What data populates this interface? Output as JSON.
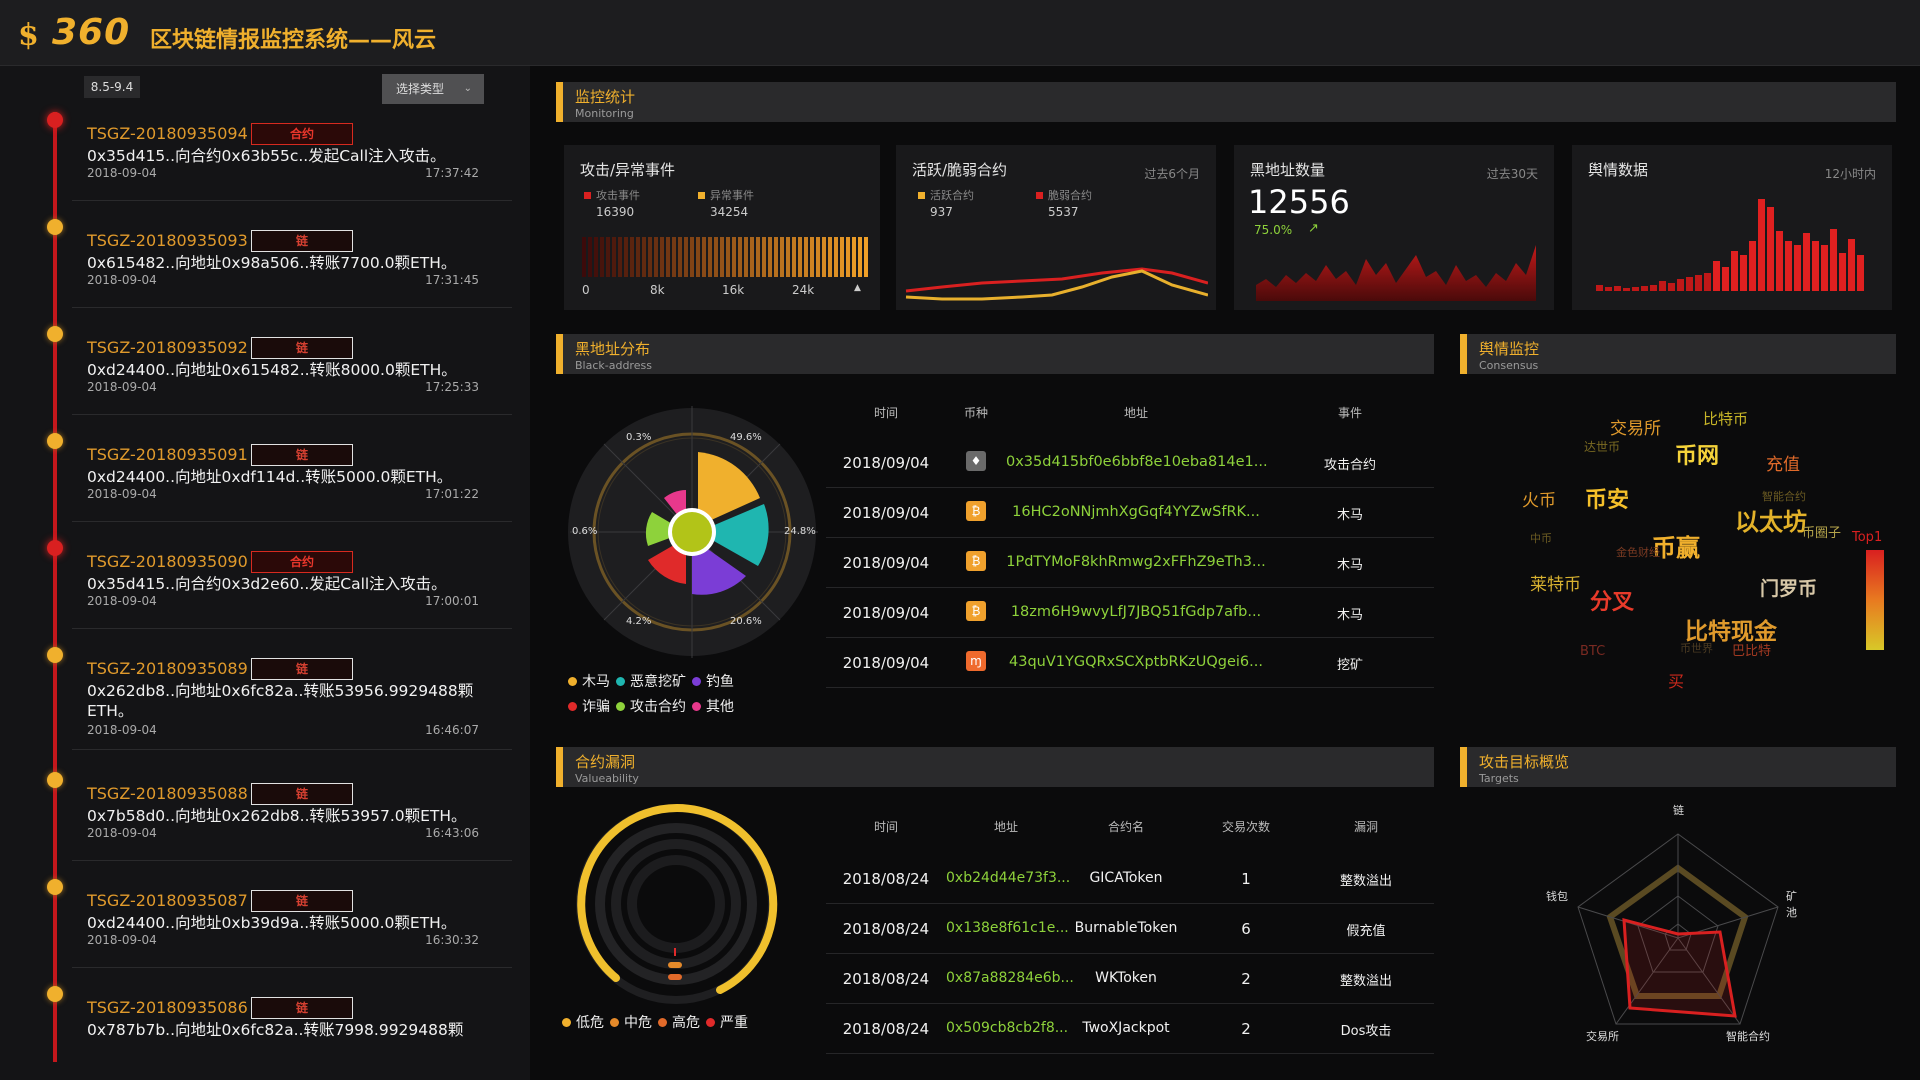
{
  "header": {
    "logo_icon": "$",
    "brand": "360",
    "title": "区块链情报监控系统——风云"
  },
  "left": {
    "date_range": "8.5-9.4",
    "type_select": {
      "label": "选择类型",
      "icon": "chevron-down-icon"
    },
    "events": [
      {
        "id": "TSGZ-20180935094",
        "tag": "合约",
        "tag_kind": "contract",
        "desc": "0x35d415..向合约0x63b55c..发起Call注入攻击。",
        "date": "2018-09-04",
        "time": "17:37:42",
        "dot": "red"
      },
      {
        "id": "TSGZ-20180935093",
        "tag": "链",
        "tag_kind": "chain",
        "desc": "0x615482..向地址0x98a506..转账7700.0颗ETH。",
        "date": "2018-09-04",
        "time": "17:31:45",
        "dot": "yellow"
      },
      {
        "id": "TSGZ-20180935092",
        "tag": "链",
        "tag_kind": "chain",
        "desc": "0xd24400..向地址0x615482..转账8000.0颗ETH。",
        "date": "2018-09-04",
        "time": "17:25:33",
        "dot": "yellow"
      },
      {
        "id": "TSGZ-20180935091",
        "tag": "链",
        "tag_kind": "chain",
        "desc": "0xd24400..向地址0xdf114d..转账5000.0颗ETH。",
        "date": "2018-09-04",
        "time": "17:01:22",
        "dot": "yellow"
      },
      {
        "id": "TSGZ-20180935090",
        "tag": "合约",
        "tag_kind": "contract",
        "desc": "0x35d415..向合约0x3d2e60..发起Call注入攻击。",
        "date": "2018-09-04",
        "time": "17:00:01",
        "dot": "red"
      },
      {
        "id": "TSGZ-20180935089",
        "tag": "链",
        "tag_kind": "chain",
        "desc": "0x262db8..向地址0x6fc82a..转账53956.9929488颗ETH。",
        "date": "2018-09-04",
        "time": "16:46:07",
        "dot": "yellow"
      },
      {
        "id": "TSGZ-20180935088",
        "tag": "链",
        "tag_kind": "chain",
        "desc": "0x7b58d0..向地址0x262db8..转账53957.0颗ETH。",
        "date": "2018-09-04",
        "time": "16:43:06",
        "dot": "yellow"
      },
      {
        "id": "TSGZ-20180935087",
        "tag": "链",
        "tag_kind": "chain",
        "desc": "0xd24400..向地址0xb39d9a..转账5000.0颗ETH。",
        "date": "2018-09-04",
        "time": "16:30:32",
        "dot": "yellow"
      },
      {
        "id": "TSGZ-20180935086",
        "tag": "链",
        "tag_kind": "chain",
        "desc": "0x787b7b..向地址0x6fc82a..转账7998.9929488颗",
        "date": "",
        "time": "",
        "dot": "yellow"
      }
    ]
  },
  "monitoring": {
    "title": "监控统计",
    "subtitle": "Monitoring",
    "attack": {
      "title": "攻击/异常事件",
      "legend": [
        {
          "label": "攻击事件",
          "value": "16390",
          "color": "#d92020"
        },
        {
          "label": "异常事件",
          "value": "34254",
          "color": "#f0b02d"
        }
      ],
      "axis": [
        "0",
        "8k",
        "16k",
        "24k"
      ]
    },
    "contracts": {
      "title": "活跃/脆弱合约",
      "range": "过去6个月",
      "legend": [
        {
          "label": "活跃合约",
          "value": "937",
          "color": "#f0b02d"
        },
        {
          "label": "脆弱合约",
          "value": "5537",
          "color": "#d92020"
        }
      ]
    },
    "blacklist": {
      "title": "黑地址数量",
      "range": "过去30天",
      "value": "12556",
      "pct": "75.0%",
      "trend_icon": "trend-up-icon"
    },
    "sentiment": {
      "title": "舆情数据",
      "range": "12小时内"
    }
  },
  "black": {
    "title": "黑地址分布",
    "subtitle": "Black-address",
    "pct_labels": [
      "0.3%",
      "49.6%",
      "24.8%",
      "20.6%",
      "4.2%",
      "0.6%"
    ],
    "legend": [
      {
        "label": "木马",
        "color": "#f0b02d"
      },
      {
        "label": "恶意挖矿",
        "color": "#1fb6b0"
      },
      {
        "label": "钓鱼",
        "color": "#7b3dd6"
      },
      {
        "label": "诈骗",
        "color": "#e02a2a"
      },
      {
        "label": "攻击合约",
        "color": "#8ed23b"
      },
      {
        "label": "其他",
        "color": "#e8388c"
      }
    ],
    "table": {
      "headers": [
        "时间",
        "币种",
        "地址",
        "事件"
      ],
      "rows": [
        {
          "time": "2018/09/04",
          "coin": "eth-icon",
          "coin_glyph": "♦",
          "coin_color": "#6a6a6a",
          "addr": "0x35d415bf0e6bbf8e10eba814e1...",
          "event": "攻击合约"
        },
        {
          "time": "2018/09/04",
          "coin": "btc-icon",
          "coin_glyph": "₿",
          "coin_color": "#f0a12d",
          "addr": "16HC2oNNjmhXgGqf4YYZwSfRK...",
          "event": "木马"
        },
        {
          "time": "2018/09/04",
          "coin": "btc-icon",
          "coin_glyph": "₿",
          "coin_color": "#f0a12d",
          "addr": "1PdTYMoF8khRmwg2xFFhZ9eTh3...",
          "event": "木马"
        },
        {
          "time": "2018/09/04",
          "coin": "btc-icon",
          "coin_glyph": "₿",
          "coin_color": "#f0a12d",
          "addr": "18zm6H9wvyLfJ7JBQ51fGdp7afb...",
          "event": "木马"
        },
        {
          "time": "2018/09/04",
          "coin": "xmr-icon",
          "coin_glyph": "ɱ",
          "coin_color": "#ef6a2d",
          "addr": "43quV1YGQRxSCXptbRKzUQgei6...",
          "event": "挖矿"
        }
      ]
    }
  },
  "consensus": {
    "title": "舆情监控",
    "subtitle": "Consensus",
    "top_label": "Top1",
    "words": [
      {
        "t": "交易所",
        "color": "#e09a2c",
        "size": 17
      },
      {
        "t": "比特币",
        "color": "#c8b628",
        "size": 15
      },
      {
        "t": "达世币",
        "color": "#7a6a22",
        "size": 12
      },
      {
        "t": "币网",
        "color": "#f5d33a",
        "size": 22
      },
      {
        "t": "充值",
        "color": "#e06a2a",
        "size": 17
      },
      {
        "t": "火币",
        "color": "#e09a2c",
        "size": 17
      },
      {
        "t": "币安",
        "color": "#f5c02a",
        "size": 22
      },
      {
        "t": "智能合约",
        "color": "#6a5a22",
        "size": 11
      },
      {
        "t": "以太坊",
        "color": "#e3b22a",
        "size": 24
      },
      {
        "t": "币圈子",
        "color": "#b4a34a",
        "size": 13
      },
      {
        "t": "中币",
        "color": "#6a5a22",
        "size": 11
      },
      {
        "t": "币赢",
        "color": "#f0b02d",
        "size": 24
      },
      {
        "t": "金色财经",
        "color": "#7a3a22",
        "size": 11
      },
      {
        "t": "莱特币",
        "color": "#d8b230",
        "size": 17
      },
      {
        "t": "门罗币",
        "color": "#d8c8a8",
        "size": 19
      },
      {
        "t": "分叉",
        "color": "#e83a2a",
        "size": 22
      },
      {
        "t": "比特现金",
        "color": "#e09a2c",
        "size": 23
      },
      {
        "t": "BTC",
        "color": "#7a2a22",
        "size": 13
      },
      {
        "t": "币世界",
        "color": "#4a3a22",
        "size": 11
      },
      {
        "t": "巴比特",
        "color": "#a33a22",
        "size": 13
      },
      {
        "t": "买",
        "color": "#c8281c",
        "size": 16
      }
    ]
  },
  "vuln": {
    "title": "合约漏洞",
    "subtitle": "Valueability",
    "legend": [
      {
        "label": "低危",
        "color": "#f0b02d"
      },
      {
        "label": "中危",
        "color": "#e58a2a"
      },
      {
        "label": "高危",
        "color": "#e26a2a"
      },
      {
        "label": "严重",
        "color": "#e02a2a"
      }
    ],
    "table": {
      "headers": [
        "时间",
        "地址",
        "合约名",
        "交易次数",
        "漏洞"
      ],
      "rows": [
        {
          "time": "2018/08/24",
          "addr": "0xb24d44e73f3...",
          "name": "GICAToken",
          "count": "1",
          "vuln": "整数溢出"
        },
        {
          "time": "2018/08/24",
          "addr": "0x138e8f61c1e...",
          "name": "BurnableToken",
          "count": "6",
          "vuln": "假充值"
        },
        {
          "time": "2018/08/24",
          "addr": "0x87a88284e6b...",
          "name": "WKToken",
          "count": "2",
          "vuln": "整数溢出"
        },
        {
          "time": "2018/08/24",
          "addr": "0x509cb8cb2f8...",
          "name": "TwoXJackpot",
          "count": "2",
          "vuln": "Dos攻击"
        }
      ]
    }
  },
  "targets": {
    "title": "攻击目标概览",
    "subtitle": "Targets",
    "axes": [
      "链",
      "矿池",
      "智能合约",
      "交易所",
      "钱包"
    ]
  },
  "colors": {
    "accent": "#f0b02d",
    "danger": "#d92020",
    "green": "#8ed23b"
  }
}
